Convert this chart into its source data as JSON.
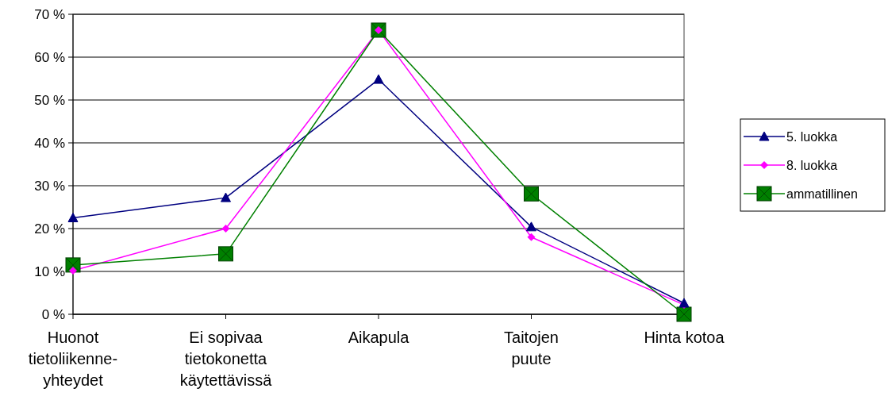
{
  "chart_data": {
    "type": "line",
    "categories": [
      "Huonot\ntietoliikenne-\nyhteydet",
      "Ei sopivaa\ntietokonetta\nkäytettävissä",
      "Aikapula",
      "Taitojen\npuute",
      "Hinta kotoa"
    ],
    "series": [
      {
        "name": "5. luokka",
        "color": "#000080",
        "marker": "triangle",
        "values": [
          22.5,
          27.2,
          54.8,
          20.4,
          2.6
        ]
      },
      {
        "name": "8. luokka",
        "color": "#ff00ff",
        "marker": "diamond",
        "values": [
          10.2,
          20,
          66.3,
          18,
          2.2
        ]
      },
      {
        "name": "ammatillinen",
        "color": "#008000",
        "marker": "square",
        "values": [
          11.5,
          14.1,
          66.3,
          28.1,
          0
        ]
      }
    ],
    "ylim": [
      0,
      70
    ],
    "yticks": [
      {
        "value": 0,
        "label": "0 %"
      },
      {
        "value": 10,
        "label": "10 %"
      },
      {
        "value": 20,
        "label": "20 %"
      },
      {
        "value": 30,
        "label": "30 %"
      },
      {
        "value": 40,
        "label": "40 %"
      },
      {
        "value": 50,
        "label": "50 %"
      },
      {
        "value": 60,
        "label": "60 %"
      },
      {
        "value": 70,
        "label": "70 %"
      }
    ],
    "grid": "y",
    "legend": "right",
    "line_style": "solid"
  }
}
